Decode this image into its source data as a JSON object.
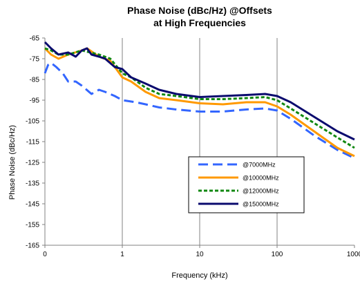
{
  "chart_data": {
    "type": "line",
    "title_line1": "Phase Noise (dBc/Hz) @Offsets",
    "title_line2": "at High Frequencies",
    "xlabel": "Frequency (kHz)",
    "ylabel": "Phase Noise (dBc/Hz)",
    "x_scale": "log",
    "xlim": [
      0.1,
      1000
    ],
    "ylim": [
      -165,
      -65
    ],
    "x_ticks": [
      {
        "value": 0.1,
        "label": "0"
      },
      {
        "value": 1,
        "label": "1"
      },
      {
        "value": 10,
        "label": "10"
      },
      {
        "value": 100,
        "label": "100"
      },
      {
        "value": 1000,
        "label": "1000"
      }
    ],
    "y_ticks": [
      -65,
      -75,
      -85,
      -95,
      -105,
      -115,
      -125,
      -135,
      -145,
      -155,
      -165
    ],
    "grid": "vertical only",
    "legend_position": "lower-center",
    "series": [
      {
        "name": "@7000MHz",
        "color": "#3366ff",
        "dash": "dashed",
        "points": [
          [
            0.1,
            -82
          ],
          [
            0.11,
            -78
          ],
          [
            0.12,
            -77
          ],
          [
            0.14,
            -79
          ],
          [
            0.17,
            -82
          ],
          [
            0.2,
            -86
          ],
          [
            0.25,
            -86
          ],
          [
            0.3,
            -88
          ],
          [
            0.4,
            -92
          ],
          [
            0.5,
            -90
          ],
          [
            0.6,
            -91
          ],
          [
            0.8,
            -93
          ],
          [
            1,
            -95
          ],
          [
            1.5,
            -96
          ],
          [
            2,
            -97
          ],
          [
            3,
            -98.5
          ],
          [
            5,
            -99.5
          ],
          [
            10,
            -100.5
          ],
          [
            20,
            -100.5
          ],
          [
            40,
            -99.5
          ],
          [
            70,
            -99
          ],
          [
            100,
            -100
          ],
          [
            150,
            -104
          ],
          [
            300,
            -112
          ],
          [
            600,
            -119
          ],
          [
            1000,
            -123
          ]
        ]
      },
      {
        "name": "@10000MHz",
        "color": "#ff9900",
        "dash": "solid",
        "points": [
          [
            0.1,
            -70
          ],
          [
            0.12,
            -73
          ],
          [
            0.15,
            -75
          ],
          [
            0.2,
            -73
          ],
          [
            0.3,
            -71
          ],
          [
            0.35,
            -70
          ],
          [
            0.5,
            -74
          ],
          [
            0.7,
            -76
          ],
          [
            1,
            -84
          ],
          [
            1.3,
            -86
          ],
          [
            2,
            -91
          ],
          [
            3,
            -94
          ],
          [
            5,
            -95
          ],
          [
            10,
            -96.5
          ],
          [
            20,
            -97
          ],
          [
            40,
            -96
          ],
          [
            70,
            -96
          ],
          [
            100,
            -98
          ],
          [
            150,
            -102
          ],
          [
            300,
            -110
          ],
          [
            600,
            -118
          ],
          [
            1000,
            -122
          ]
        ]
      },
      {
        "name": "@12000MHz",
        "color": "#118811",
        "dash": "dotted",
        "points": [
          [
            0.1,
            -70
          ],
          [
            0.12,
            -71
          ],
          [
            0.15,
            -73
          ],
          [
            0.2,
            -73
          ],
          [
            0.3,
            -71
          ],
          [
            0.5,
            -73
          ],
          [
            0.7,
            -75
          ],
          [
            1,
            -82
          ],
          [
            1.3,
            -84
          ],
          [
            2,
            -89
          ],
          [
            3,
            -92
          ],
          [
            5,
            -93
          ],
          [
            10,
            -94.5
          ],
          [
            20,
            -94.5
          ],
          [
            40,
            -94
          ],
          [
            70,
            -93.5
          ],
          [
            100,
            -95
          ],
          [
            150,
            -99
          ],
          [
            300,
            -106
          ],
          [
            600,
            -113
          ],
          [
            1000,
            -118
          ]
        ]
      },
      {
        "name": "@15000MHz",
        "color": "#0a0a6e",
        "dash": "solid",
        "points": [
          [
            0.1,
            -67
          ],
          [
            0.12,
            -70
          ],
          [
            0.15,
            -73
          ],
          [
            0.2,
            -72
          ],
          [
            0.25,
            -74
          ],
          [
            0.3,
            -71
          ],
          [
            0.35,
            -70
          ],
          [
            0.4,
            -73
          ],
          [
            0.5,
            -74
          ],
          [
            0.6,
            -75
          ],
          [
            0.8,
            -79
          ],
          [
            1,
            -80
          ],
          [
            1.3,
            -84
          ],
          [
            2,
            -87
          ],
          [
            3,
            -90
          ],
          [
            5,
            -92
          ],
          [
            10,
            -93.5
          ],
          [
            20,
            -93
          ],
          [
            40,
            -92.5
          ],
          [
            70,
            -92
          ],
          [
            100,
            -93
          ],
          [
            150,
            -96
          ],
          [
            300,
            -103
          ],
          [
            600,
            -110
          ],
          [
            1000,
            -114
          ]
        ]
      }
    ]
  }
}
